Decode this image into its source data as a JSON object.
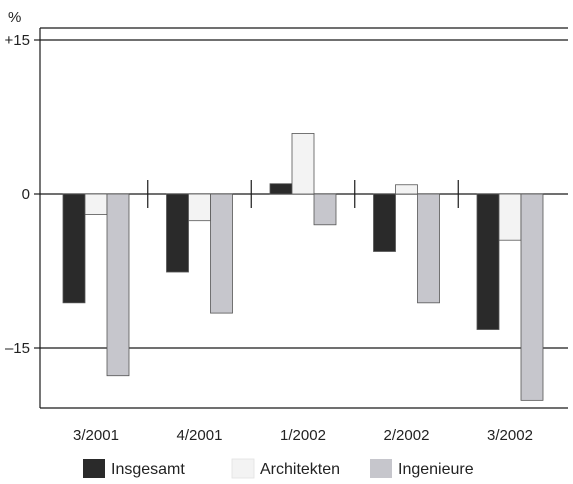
{
  "chart_data": {
    "type": "bar",
    "ylabel": "%",
    "categories": [
      "3/2001",
      "4/2001",
      "1/2002",
      "2/2002",
      "3/2002"
    ],
    "yticks": [
      {
        "value": 15,
        "label": "+15"
      },
      {
        "value": 0,
        "label": "0"
      },
      {
        "value": -15,
        "label": "–15"
      }
    ],
    "ylim": [
      -20.5,
      16.5
    ],
    "grid": "horizontal lines at +15 and –15",
    "legend_position": "bottom",
    "series": [
      {
        "name": "Insgesamt",
        "color": "#2a2a2a",
        "values": [
          -10.6,
          -7.6,
          1.0,
          -5.6,
          -13.2
        ]
      },
      {
        "name": "Architekten",
        "color": "#f3f3f3",
        "values": [
          -2.0,
          -2.6,
          5.9,
          0.9,
          -4.5
        ]
      },
      {
        "name": "Ingenieure",
        "color": "#c6c6cc",
        "values": [
          -17.7,
          -11.6,
          -3.0,
          -10.6,
          -20.1
        ]
      }
    ]
  }
}
